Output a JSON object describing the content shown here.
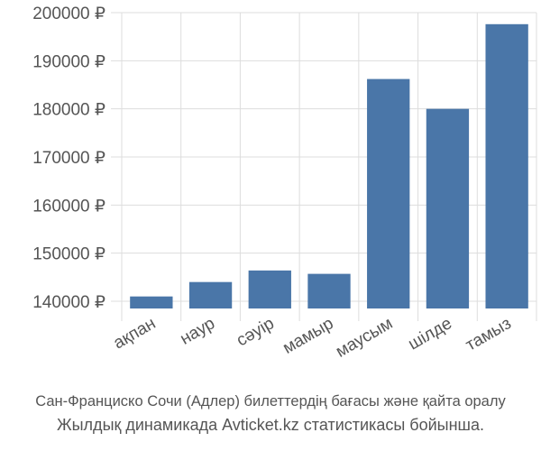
{
  "chart_data": {
    "type": "bar",
    "categories": [
      "ақпан",
      "наур",
      "сәуір",
      "мамыр",
      "маусым",
      "шілде",
      "тамыз"
    ],
    "values": [
      141000,
      144000,
      146400,
      145700,
      186200,
      180000,
      197600
    ],
    "ylim": [
      138500,
      200000
    ],
    "yticks": [
      140000,
      150000,
      160000,
      170000,
      180000,
      190000,
      200000
    ],
    "ytick_labels": [
      "140000 ₽",
      "150000 ₽",
      "160000 ₽",
      "170000 ₽",
      "180000 ₽",
      "190000 ₽",
      "200000 ₽"
    ],
    "grid": true,
    "bar_color": "#4a76a8",
    "grid_color": "#dddddd",
    "text_color": "#555555"
  },
  "caption": {
    "line1": "Сан-Франциско Сочи (Адлер) билеттердің бағасы және қайта оралу",
    "line2": "Жылдық динамикада Avticket.kz статистикасы бойынша."
  }
}
